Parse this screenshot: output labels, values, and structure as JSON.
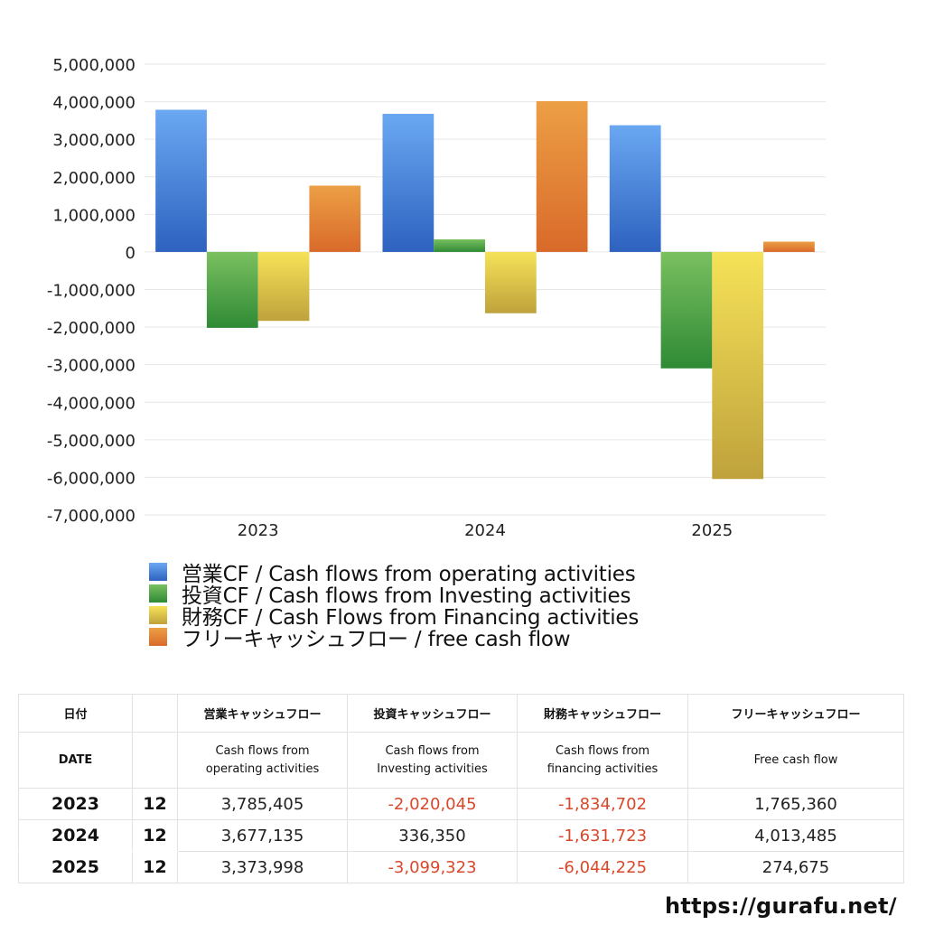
{
  "chart_data": {
    "type": "bar",
    "categories": [
      "2023",
      "2024",
      "2025"
    ],
    "series": [
      {
        "name": "営業CF / Cash flows from operating activities",
        "values": [
          3785405,
          3677135,
          3373998
        ],
        "color_top": "#6aa8f2",
        "color_bottom": "#2d62bf"
      },
      {
        "name": "投資CF / Cash flows from Investing activities",
        "values": [
          -2020045,
          336350,
          -3099323
        ],
        "color_top": "#7ac060",
        "color_bottom": "#2f8a35"
      },
      {
        "name": "財務CF / Cash Flows from Financing activities",
        "values": [
          -1834702,
          -1631723,
          -6044225
        ],
        "color_top": "#f6e258",
        "color_bottom": "#bfa23c"
      },
      {
        "name": "フリーキャッシュフロー / free cash flow",
        "values": [
          1765360,
          4013485,
          274675
        ],
        "color_top": "#ec9f45",
        "color_bottom": "#d96a2a"
      }
    ],
    "y_ticks": [
      "5,000,000",
      "4,000,000",
      "3,000,000",
      "2,000,000",
      "1,000,000",
      "0",
      "-1,000,000",
      "-2,000,000",
      "-3,000,000",
      "-4,000,000",
      "-5,000,000",
      "-6,000,000",
      "-7,000,000"
    ],
    "ylim": [
      -7000000,
      5000000
    ],
    "grid": true,
    "legend_position": "bottom"
  },
  "table": {
    "headers": {
      "date_jp": "日付",
      "op_jp": "営業キャッシュフロー",
      "inv_jp": "投資キャッシュフロー",
      "fin_jp": "財務キャッシュフロー",
      "free_jp": "フリーキャッシュフロー",
      "date_en": "DATE",
      "op_en": [
        "Cash flows from",
        "operating activities"
      ],
      "inv_en": [
        "Cash flows from",
        "Investing activities"
      ],
      "fin_en": [
        "Cash flows from",
        "financing activities"
      ],
      "free_en": "Free cash flow"
    },
    "rows": [
      {
        "year": "2023",
        "month": "12",
        "op": "3,785,405",
        "inv": "-2,020,045",
        "fin": "-1,834,702",
        "free": "1,765,360"
      },
      {
        "year": "2024",
        "month": "12",
        "op": "3,677,135",
        "inv": "336,350",
        "fin": "-1,631,723",
        "free": "4,013,485"
      },
      {
        "year": "2025",
        "month": "12",
        "op": "3,373,998",
        "inv": "-3,099,323",
        "fin": "-6,044,225",
        "free": "274,675"
      }
    ],
    "negative_color": "#d9482b"
  },
  "footer": {
    "url": "https://gurafu.net/"
  }
}
